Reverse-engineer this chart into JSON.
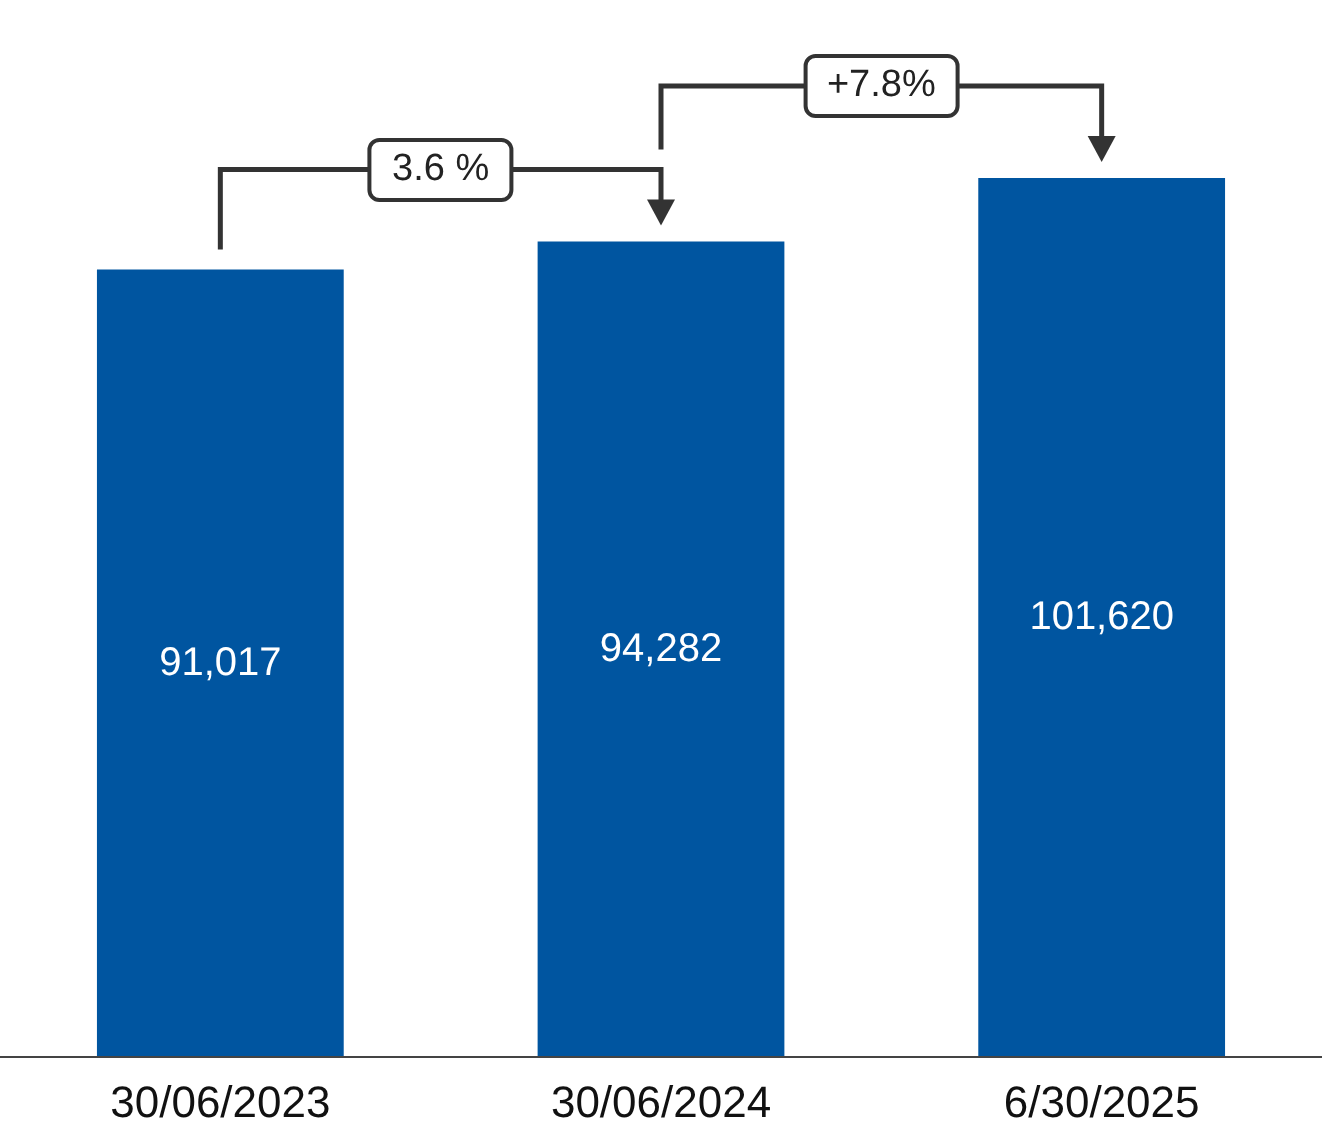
{
  "chart_data": {
    "type": "bar",
    "categories": [
      "30/06/2023",
      "30/06/2024",
      "6/30/2025"
    ],
    "values": [
      91017,
      94282,
      101620
    ],
    "color": "#0055a0",
    "tick_labels": "x",
    "value_labels": [
      "91,017",
      "94,282",
      "101,620"
    ],
    "annotations": [
      "3.6 %",
      "+7.8%"
    ]
  }
}
